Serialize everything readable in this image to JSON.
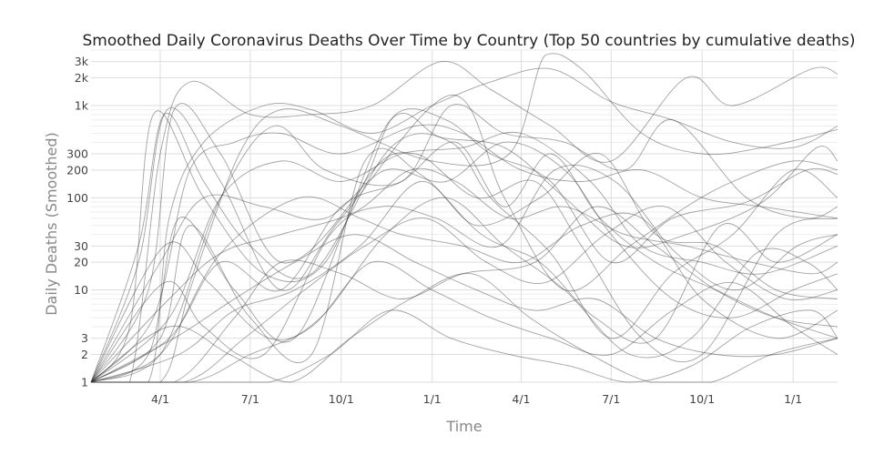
{
  "chart_data": {
    "type": "line",
    "title": "Smoothed Daily Coronavirus Deaths Over Time by Country (Top 50 countries by cumulative deaths)",
    "xlabel": "Time",
    "ylabel": "Daily Deaths (Smoothed)",
    "y_scale": "log",
    "ylim": [
      1,
      4000
    ],
    "xlim": [
      "2020-01-22",
      "2022-02-15"
    ],
    "grid": true,
    "legend": "none",
    "line_color": "#333333",
    "y_ticks": [
      {
        "value": 1,
        "label": "1"
      },
      {
        "value": 2,
        "label": "2"
      },
      {
        "value": 3,
        "label": "3"
      },
      {
        "value": 10,
        "label": "10"
      },
      {
        "value": 20,
        "label": "20"
      },
      {
        "value": 30,
        "label": "30"
      },
      {
        "value": 100,
        "label": "100"
      },
      {
        "value": 200,
        "label": "200"
      },
      {
        "value": 300,
        "label": "300"
      },
      {
        "value": 1000,
        "label": "1k"
      },
      {
        "value": 2000,
        "label": "2k"
      },
      {
        "value": 3000,
        "label": "3k"
      }
    ],
    "x_ticks": [
      {
        "value": "2020-04-01",
        "label": "4/1"
      },
      {
        "value": "2020-07-01",
        "label": "7/1"
      },
      {
        "value": "2020-10-01",
        "label": "10/1"
      },
      {
        "value": "2021-01-01",
        "label": "1/1"
      },
      {
        "value": "2021-04-01",
        "label": "4/1"
      },
      {
        "value": "2021-07-01",
        "label": "7/1"
      },
      {
        "value": "2021-10-01",
        "label": "10/1"
      },
      {
        "value": "2022-01-01",
        "label": "1/1"
      }
    ],
    "series": [
      {
        "x": [
          "2020-01-22",
          "2020-03-01",
          "2020-04-01",
          "2020-05-01",
          "2020-07-01",
          "2020-09-01",
          "2020-11-01",
          "2021-01-10",
          "2021-03-01",
          "2021-05-01",
          "2021-07-01",
          "2021-09-15",
          "2021-11-01",
          "2022-01-20",
          "2022-02-15"
        ],
        "y": [
          1,
          1,
          300,
          1800,
          800,
          800,
          1000,
          3000,
          1500,
          600,
          250,
          2000,
          1000,
          2500,
          2200
        ]
      },
      {
        "x": [
          "2020-01-22",
          "2020-03-20",
          "2020-04-10",
          "2020-05-15",
          "2020-07-15",
          "2020-09-01",
          "2020-11-01",
          "2021-01-01",
          "2021-03-01",
          "2021-05-01",
          "2021-07-01",
          "2021-09-01",
          "2021-11-01",
          "2022-01-01",
          "2022-02-15"
        ],
        "y": [
          1,
          1,
          60,
          400,
          1000,
          900,
          500,
          1000,
          1800,
          2500,
          1100,
          700,
          400,
          350,
          600
        ]
      },
      {
        "x": [
          "2020-01-22",
          "2020-04-01",
          "2020-05-01",
          "2020-06-20",
          "2020-08-01",
          "2020-10-01",
          "2021-01-01",
          "2021-03-20",
          "2021-04-25",
          "2021-06-01",
          "2021-08-01",
          "2021-10-01",
          "2021-12-01",
          "2022-02-15"
        ],
        "y": [
          1,
          1,
          10,
          300,
          900,
          600,
          250,
          300,
          3500,
          2500,
          500,
          300,
          350,
          550
        ]
      },
      {
        "x": [
          "2020-01-22",
          "2020-03-10",
          "2020-04-05",
          "2020-05-15",
          "2020-07-01",
          "2020-09-01",
          "2020-11-20",
          "2021-01-20",
          "2021-03-01",
          "2021-05-01",
          "2021-07-01",
          "2021-09-01",
          "2021-11-01",
          "2022-01-01",
          "2022-02-15"
        ],
        "y": [
          1,
          30,
          800,
          150,
          30,
          15,
          350,
          400,
          100,
          25,
          3,
          15,
          40,
          200,
          100
        ]
      },
      {
        "x": [
          "2020-01-22",
          "2020-03-01",
          "2020-03-25",
          "2020-05-15",
          "2020-07-15",
          "2020-09-15",
          "2020-11-20",
          "2021-01-10",
          "2021-03-15",
          "2021-05-15",
          "2021-07-15",
          "2021-09-15",
          "2021-12-01",
          "2022-01-25",
          "2022-02-15"
        ],
        "y": [
          1,
          4,
          800,
          100,
          15,
          20,
          700,
          450,
          350,
          100,
          30,
          40,
          90,
          350,
          250
        ]
      },
      {
        "x": [
          "2020-01-22",
          "2020-03-10",
          "2020-04-08",
          "2020-06-01",
          "2020-08-01",
          "2020-10-01",
          "2021-01-20",
          "2021-03-15",
          "2021-05-15",
          "2021-07-20",
          "2021-09-15",
          "2021-11-01",
          "2022-01-01",
          "2022-02-15"
        ],
        "y": [
          1,
          20,
          900,
          150,
          10,
          60,
          1300,
          100,
          10,
          30,
          80,
          150,
          250,
          200
        ]
      },
      {
        "x": [
          "2020-01-22",
          "2020-03-20",
          "2020-04-15",
          "2020-06-01",
          "2020-08-01",
          "2020-10-15",
          "2020-11-25",
          "2021-01-15",
          "2021-03-01",
          "2021-05-01",
          "2021-07-01",
          "2021-09-01",
          "2021-11-15",
          "2022-01-15",
          "2022-02-15"
        ],
        "y": [
          1,
          10,
          900,
          300,
          20,
          100,
          800,
          700,
          300,
          150,
          20,
          60,
          90,
          200,
          180
        ]
      },
      {
        "x": [
          "2020-01-22",
          "2020-03-25",
          "2020-05-01",
          "2020-06-15",
          "2020-08-01",
          "2020-10-01",
          "2020-12-15",
          "2021-02-01",
          "2021-04-01",
          "2021-06-01",
          "2021-08-01",
          "2021-10-01",
          "2021-12-01",
          "2022-02-15"
        ],
        "y": [
          1,
          5,
          200,
          400,
          500,
          300,
          600,
          500,
          200,
          150,
          200,
          100,
          80,
          60
        ]
      },
      {
        "x": [
          "2020-01-22",
          "2020-04-01",
          "2020-06-01",
          "2020-07-25",
          "2020-09-15",
          "2020-12-01",
          "2021-01-20",
          "2021-03-15",
          "2021-05-15",
          "2021-07-15",
          "2021-09-01",
          "2021-11-15",
          "2022-01-15",
          "2022-02-15"
        ],
        "y": [
          1,
          2,
          100,
          600,
          200,
          150,
          1000,
          500,
          400,
          200,
          700,
          100,
          60,
          80
        ]
      },
      {
        "x": [
          "2020-01-22",
          "2020-04-10",
          "2020-06-01",
          "2020-08-01",
          "2020-10-01",
          "2020-12-01",
          "2021-02-01",
          "2021-04-01",
          "2021-06-10",
          "2021-08-01",
          "2021-10-01",
          "2021-12-01",
          "2022-02-15"
        ],
        "y": [
          1,
          5,
          100,
          250,
          150,
          300,
          350,
          500,
          150,
          30,
          20,
          15,
          30
        ]
      },
      {
        "x": [
          "2020-01-22",
          "2020-04-01",
          "2020-05-15",
          "2020-07-15",
          "2020-09-15",
          "2020-11-15",
          "2021-01-15",
          "2021-03-15",
          "2021-05-15",
          "2021-07-01",
          "2021-09-01",
          "2021-11-01",
          "2022-01-01",
          "2022-02-15"
        ],
        "y": [
          1,
          20,
          100,
          80,
          60,
          200,
          150,
          400,
          200,
          40,
          8,
          5,
          10,
          15
        ]
      },
      {
        "x": [
          "2020-01-22",
          "2020-03-20",
          "2020-04-20",
          "2020-06-15",
          "2020-08-15",
          "2020-10-25",
          "2020-12-15",
          "2021-02-15",
          "2021-04-15",
          "2021-06-01",
          "2021-08-01",
          "2021-10-01",
          "2021-12-15",
          "2022-02-15"
        ],
        "y": [
          1,
          2,
          60,
          10,
          3,
          150,
          300,
          100,
          150,
          30,
          3,
          2,
          40,
          60
        ]
      },
      {
        "x": [
          "2020-01-22",
          "2020-04-01",
          "2020-05-01",
          "2020-07-01",
          "2020-09-01",
          "2020-10-25",
          "2020-12-20",
          "2021-02-20",
          "2021-04-20",
          "2021-06-15",
          "2021-08-15",
          "2021-10-20",
          "2021-12-15",
          "2022-02-15"
        ],
        "y": [
          1,
          3,
          50,
          5,
          2,
          250,
          180,
          40,
          20,
          5,
          3,
          50,
          20,
          40
        ]
      },
      {
        "x": [
          "2020-01-22",
          "2020-04-10",
          "2020-06-01",
          "2020-08-01",
          "2020-10-01",
          "2020-12-01",
          "2021-01-25",
          "2021-03-15",
          "2021-05-01",
          "2021-06-20",
          "2021-08-15",
          "2021-10-15",
          "2021-12-15",
          "2022-02-15"
        ],
        "y": [
          1,
          3,
          20,
          10,
          80,
          150,
          400,
          80,
          300,
          60,
          20,
          10,
          5,
          3
        ]
      },
      {
        "x": [
          "2020-01-22",
          "2020-04-10",
          "2020-06-01",
          "2020-08-01",
          "2020-10-15",
          "2020-12-10",
          "2021-01-25",
          "2021-03-20",
          "2021-05-15",
          "2021-07-15",
          "2021-09-15",
          "2021-11-20",
          "2022-01-20",
          "2022-02-15"
        ],
        "y": [
          1,
          8,
          25,
          40,
          70,
          200,
          150,
          60,
          80,
          40,
          30,
          20,
          15,
          20
        ]
      },
      {
        "x": [
          "2020-01-22",
          "2020-04-20",
          "2020-06-15",
          "2020-08-15",
          "2020-10-20",
          "2020-12-20",
          "2021-02-15",
          "2021-04-20",
          "2021-06-20",
          "2021-08-15",
          "2021-10-15",
          "2021-12-15",
          "2022-02-15"
        ],
        "y": [
          1,
          2,
          6,
          10,
          30,
          150,
          50,
          100,
          300,
          40,
          30,
          10,
          8
        ]
      },
      {
        "x": [
          "2020-01-22",
          "2020-04-05",
          "2020-05-15",
          "2020-07-15",
          "2020-09-20",
          "2020-11-10",
          "2021-01-05",
          "2021-03-10",
          "2021-05-05",
          "2021-07-05",
          "2021-09-05",
          "2021-11-05",
          "2022-01-05",
          "2022-02-15"
        ],
        "y": [
          1,
          12,
          4,
          2,
          40,
          80,
          60,
          30,
          200,
          150,
          25,
          10,
          30,
          40
        ]
      },
      {
        "x": [
          "2020-01-22",
          "2020-04-01",
          "2020-06-01",
          "2020-08-20",
          "2020-10-20",
          "2020-12-01",
          "2021-02-01",
          "2021-04-01",
          "2021-06-01",
          "2021-08-01",
          "2021-10-01",
          "2021-12-15",
          "2022-02-15"
        ],
        "y": [
          1,
          2,
          25,
          100,
          60,
          40,
          30,
          20,
          50,
          60,
          8,
          3,
          6
        ]
      },
      {
        "x": [
          "2020-01-22",
          "2020-04-15",
          "2020-06-15",
          "2020-08-01",
          "2020-10-01",
          "2020-12-01",
          "2021-02-01",
          "2021-04-15",
          "2021-06-15",
          "2021-08-15",
          "2021-10-15",
          "2021-12-15",
          "2022-02-15"
        ],
        "y": [
          1,
          1,
          5,
          20,
          15,
          8,
          15,
          20,
          80,
          30,
          10,
          5,
          4
        ]
      },
      {
        "x": [
          "2020-01-22",
          "2020-04-05",
          "2020-05-20",
          "2020-07-20",
          "2020-09-10",
          "2020-11-15",
          "2021-01-15",
          "2021-03-15",
          "2021-05-15",
          "2021-07-20",
          "2021-09-20",
          "2021-11-25",
          "2022-01-15",
          "2022-02-15"
        ],
        "y": [
          1,
          30,
          12,
          3,
          5,
          40,
          100,
          30,
          10,
          2,
          3,
          25,
          20,
          10
        ]
      },
      {
        "x": [
          "2020-01-22",
          "2020-04-15",
          "2020-06-15",
          "2020-08-15",
          "2020-10-15",
          "2020-12-15",
          "2021-02-15",
          "2021-04-15",
          "2021-06-15",
          "2021-08-15",
          "2021-10-15",
          "2021-12-15",
          "2022-02-15"
        ],
        "y": [
          1,
          3,
          8,
          20,
          40,
          20,
          10,
          6,
          8,
          3,
          2,
          2,
          3
        ]
      },
      {
        "x": [
          "2020-01-22",
          "2020-04-25",
          "2020-06-25",
          "2020-08-25",
          "2020-10-25",
          "2020-12-25",
          "2021-02-25",
          "2021-04-25",
          "2021-06-25",
          "2021-08-25",
          "2021-10-25",
          "2021-12-25",
          "2022-02-15"
        ],
        "y": [
          1,
          1,
          3,
          10,
          30,
          60,
          20,
          12,
          40,
          80,
          20,
          8,
          10
        ]
      },
      {
        "x": [
          "2020-01-22",
          "2020-05-01",
          "2020-07-01",
          "2020-09-01",
          "2020-11-01",
          "2021-01-01",
          "2021-03-01",
          "2021-05-01",
          "2021-07-01",
          "2021-09-01",
          "2021-11-01",
          "2022-01-01",
          "2022-02-15"
        ],
        "y": [
          1,
          1,
          2,
          4,
          20,
          10,
          5,
          3,
          2,
          6,
          12,
          4,
          2
        ]
      },
      {
        "x": [
          "2020-01-22",
          "2020-04-10",
          "2020-06-10",
          "2020-08-10",
          "2020-10-10",
          "2020-12-10",
          "2021-02-10",
          "2021-04-10",
          "2021-06-10",
          "2021-08-10",
          "2021-10-10",
          "2021-12-10",
          "2022-02-15"
        ],
        "y": [
          1,
          4,
          2,
          1,
          3,
          8,
          15,
          5,
          2,
          1,
          1,
          2,
          3
        ]
      },
      {
        "x": [
          "2020-01-22",
          "2020-05-15",
          "2020-07-20",
          "2020-09-20",
          "2020-11-20",
          "2021-01-20",
          "2021-03-20",
          "2021-05-20",
          "2021-07-20",
          "2021-09-20",
          "2021-11-20",
          "2022-01-20",
          "2022-02-15"
        ],
        "y": [
          1,
          1,
          1,
          2,
          6,
          3,
          2,
          1.5,
          1,
          1.5,
          4,
          6,
          3
        ]
      }
    ]
  }
}
